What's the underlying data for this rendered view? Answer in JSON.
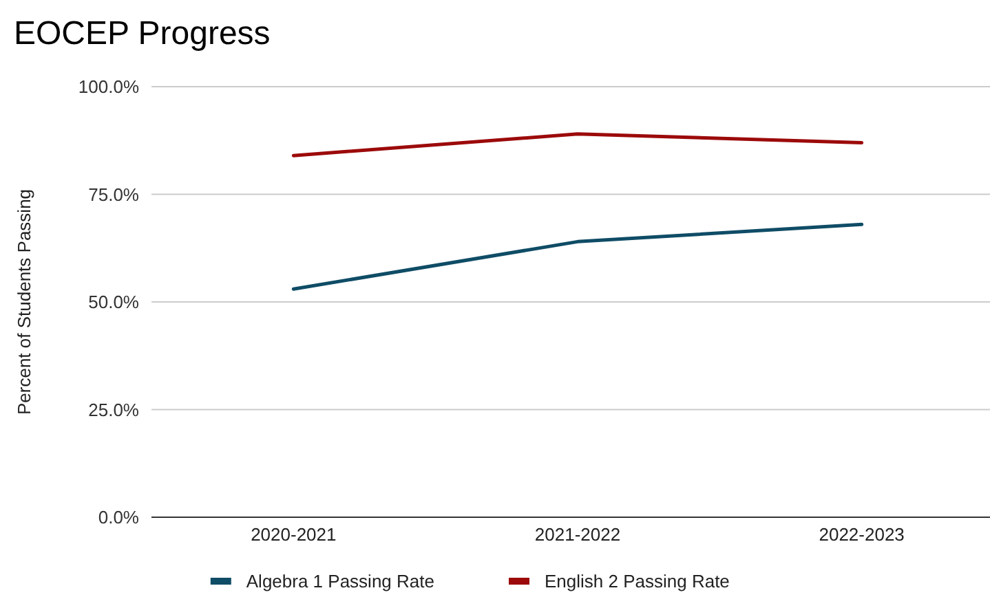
{
  "chart_data": {
    "type": "line",
    "title": "EOCEP Progress",
    "ylabel": "Percent of Students Passing",
    "categories": [
      "2020-2021",
      "2021-2022",
      "2022-2023"
    ],
    "series": [
      {
        "name": "Algebra 1 Passing Rate",
        "color": "#0f4c66",
        "values": [
          53,
          64,
          68
        ]
      },
      {
        "name": "English 2 Passing Rate",
        "color": "#9c0a0a",
        "values": [
          84,
          89,
          87
        ]
      }
    ],
    "ylim": [
      0,
      100
    ],
    "yticks": [
      {
        "value": 0,
        "label": "0.0%"
      },
      {
        "value": 25,
        "label": "25.0%"
      },
      {
        "value": 50,
        "label": "50.0%"
      },
      {
        "value": 75,
        "label": "75.0%"
      },
      {
        "value": 100,
        "label": "100.0%"
      }
    ],
    "grid": "y",
    "legend": "bottom"
  }
}
